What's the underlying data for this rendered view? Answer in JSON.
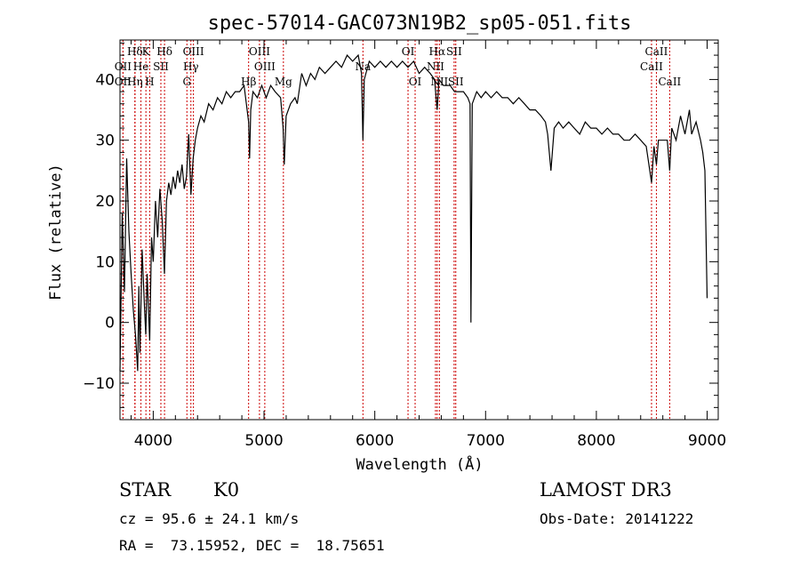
{
  "chart_data": {
    "type": "line",
    "title": "spec-57014-GAC073N19B2_sp05-051.fits",
    "xlabel": "Wavelength (Å)",
    "ylabel": "Flux (relative)",
    "xlim": [
      3700,
      9100
    ],
    "ylim": [
      -16,
      46.5
    ],
    "xticks": [
      4000,
      5000,
      6000,
      7000,
      8000,
      9000
    ],
    "yticks": [
      -10,
      0,
      10,
      20,
      30,
      40
    ],
    "x_minor_step": 200,
    "y_minor_step": 2,
    "grid": false,
    "line_color": "#000000",
    "marker_color": "#cc0000",
    "spectrum": [
      [
        3700,
        -8
      ],
      [
        3720,
        18
      ],
      [
        3740,
        5
      ],
      [
        3760,
        27
      ],
      [
        3780,
        15
      ],
      [
        3800,
        8
      ],
      [
        3820,
        2
      ],
      [
        3840,
        -2
      ],
      [
        3860,
        -8
      ],
      [
        3870,
        6
      ],
      [
        3880,
        -5
      ],
      [
        3900,
        12
      ],
      [
        3920,
        3
      ],
      [
        3933,
        -2
      ],
      [
        3945,
        8
      ],
      [
        3968,
        -3
      ],
      [
        3985,
        14
      ],
      [
        4000,
        10
      ],
      [
        4020,
        20
      ],
      [
        4040,
        14
      ],
      [
        4060,
        22
      ],
      [
        4080,
        17
      ],
      [
        4101,
        8
      ],
      [
        4120,
        20
      ],
      [
        4140,
        23
      ],
      [
        4160,
        21
      ],
      [
        4180,
        24
      ],
      [
        4200,
        22
      ],
      [
        4220,
        25
      ],
      [
        4240,
        23
      ],
      [
        4260,
        26
      ],
      [
        4280,
        22
      ],
      [
        4300,
        24
      ],
      [
        4320,
        31
      ],
      [
        4340,
        21
      ],
      [
        4360,
        27
      ],
      [
        4380,
        30
      ],
      [
        4400,
        32
      ],
      [
        4430,
        34
      ],
      [
        4460,
        33
      ],
      [
        4500,
        36
      ],
      [
        4540,
        35
      ],
      [
        4580,
        37
      ],
      [
        4620,
        36
      ],
      [
        4660,
        38
      ],
      [
        4700,
        37
      ],
      [
        4740,
        38
      ],
      [
        4780,
        38
      ],
      [
        4820,
        39
      ],
      [
        4861,
        33
      ],
      [
        4870,
        27
      ],
      [
        4880,
        35
      ],
      [
        4900,
        38
      ],
      [
        4940,
        37
      ],
      [
        4980,
        39
      ],
      [
        5020,
        37
      ],
      [
        5060,
        39
      ],
      [
        5100,
        38
      ],
      [
        5150,
        37
      ],
      [
        5172,
        32
      ],
      [
        5183,
        26
      ],
      [
        5200,
        34
      ],
      [
        5240,
        36
      ],
      [
        5280,
        37
      ],
      [
        5300,
        36
      ],
      [
        5340,
        41
      ],
      [
        5380,
        39
      ],
      [
        5420,
        41
      ],
      [
        5460,
        40
      ],
      [
        5500,
        42
      ],
      [
        5550,
        41
      ],
      [
        5600,
        42
      ],
      [
        5650,
        43
      ],
      [
        5700,
        42
      ],
      [
        5750,
        44
      ],
      [
        5800,
        43
      ],
      [
        5850,
        44
      ],
      [
        5880,
        41
      ],
      [
        5893,
        30
      ],
      [
        5905,
        40
      ],
      [
        5950,
        43
      ],
      [
        6000,
        42
      ],
      [
        6050,
        43
      ],
      [
        6100,
        42
      ],
      [
        6150,
        43
      ],
      [
        6200,
        42
      ],
      [
        6250,
        43
      ],
      [
        6300,
        42
      ],
      [
        6350,
        43
      ],
      [
        6400,
        41
      ],
      [
        6450,
        42
      ],
      [
        6500,
        41
      ],
      [
        6540,
        40
      ],
      [
        6563,
        35
      ],
      [
        6580,
        40
      ],
      [
        6620,
        39
      ],
      [
        6680,
        39
      ],
      [
        6720,
        38
      ],
      [
        6760,
        38
      ],
      [
        6800,
        38
      ],
      [
        6840,
        37
      ],
      [
        6860,
        36
      ],
      [
        6868,
        0
      ],
      [
        6880,
        36
      ],
      [
        6920,
        38
      ],
      [
        6960,
        37
      ],
      [
        7000,
        38
      ],
      [
        7050,
        37
      ],
      [
        7100,
        38
      ],
      [
        7150,
        37
      ],
      [
        7200,
        37
      ],
      [
        7250,
        36
      ],
      [
        7300,
        37
      ],
      [
        7350,
        36
      ],
      [
        7400,
        35
      ],
      [
        7450,
        35
      ],
      [
        7500,
        34
      ],
      [
        7540,
        33
      ],
      [
        7560,
        31
      ],
      [
        7590,
        25
      ],
      [
        7620,
        32
      ],
      [
        7660,
        33
      ],
      [
        7700,
        32
      ],
      [
        7750,
        33
      ],
      [
        7800,
        32
      ],
      [
        7850,
        31
      ],
      [
        7900,
        33
      ],
      [
        7950,
        32
      ],
      [
        8000,
        32
      ],
      [
        8050,
        31
      ],
      [
        8100,
        32
      ],
      [
        8150,
        31
      ],
      [
        8200,
        31
      ],
      [
        8250,
        30
      ],
      [
        8300,
        30
      ],
      [
        8350,
        31
      ],
      [
        8400,
        30
      ],
      [
        8450,
        29
      ],
      [
        8498,
        23
      ],
      [
        8520,
        29
      ],
      [
        8542,
        26
      ],
      [
        8560,
        30
      ],
      [
        8600,
        30
      ],
      [
        8640,
        30
      ],
      [
        8662,
        25
      ],
      [
        8680,
        32
      ],
      [
        8720,
        30
      ],
      [
        8760,
        34
      ],
      [
        8800,
        31
      ],
      [
        8840,
        35
      ],
      [
        8860,
        31
      ],
      [
        8900,
        33
      ],
      [
        8940,
        30
      ],
      [
        8960,
        28
      ],
      [
        8980,
        25
      ],
      [
        9000,
        4
      ]
    ],
    "lines": [
      {
        "label": "Hδ",
        "x": 3835,
        "row": 0
      },
      {
        "label": "OII",
        "x": 3727,
        "row": 1
      },
      {
        "label": "He",
        "x": 3889,
        "row": 1
      },
      {
        "label": "K",
        "x": 3934,
        "row": 0
      },
      {
        "label": "SII",
        "x": 4069,
        "row": 1
      },
      {
        "label": "Hδ",
        "x": 4102,
        "row": 0
      },
      {
        "label": "OIII",
        "x": 4363,
        "row": 0
      },
      {
        "label": "Hγ",
        "x": 4340,
        "row": 1
      },
      {
        "label": "G",
        "x": 4304,
        "row": 2
      },
      {
        "label": "OIII",
        "x": 4959,
        "row": 0
      },
      {
        "label": "OIII",
        "x": 5007,
        "row": 1
      },
      {
        "label": "Hβ",
        "x": 4861,
        "row": 2
      },
      {
        "label": "Mg",
        "x": 5175,
        "row": 2
      },
      {
        "label": "Na",
        "x": 5893,
        "row": 1
      },
      {
        "label": "OI",
        "x": 6300,
        "row": 0
      },
      {
        "label": "OI",
        "x": 6364,
        "row": 2
      },
      {
        "label": "Hα",
        "x": 6563,
        "row": 0
      },
      {
        "label": "SII",
        "x": 6716,
        "row": 0
      },
      {
        "label": "NII",
        "x": 6548,
        "row": 1
      },
      {
        "label": "NII",
        "x": 6583,
        "row": 2
      },
      {
        "label": "SII",
        "x": 6731,
        "row": 2
      },
      {
        "label": "OII",
        "x": 3727,
        "row": 2
      },
      {
        "label": "Hη",
        "x": 3835,
        "row": 2
      },
      {
        "label": "H",
        "x": 3968,
        "row": 2
      },
      {
        "label": "CaII",
        "x": 8542,
        "row": 0
      },
      {
        "label": "CaII",
        "x": 8498,
        "row": 1
      },
      {
        "label": "CaII",
        "x": 8662,
        "row": 2
      }
    ]
  },
  "info": {
    "class": "STAR",
    "subclass": "K0",
    "survey": "LAMOST DR3",
    "redshift_text": "cz = 95.6 ± 24.1 km/s",
    "obs_date_text": "Obs-Date: 20141222",
    "coords_text": "RA =  73.15952, DEC =  18.75651"
  }
}
